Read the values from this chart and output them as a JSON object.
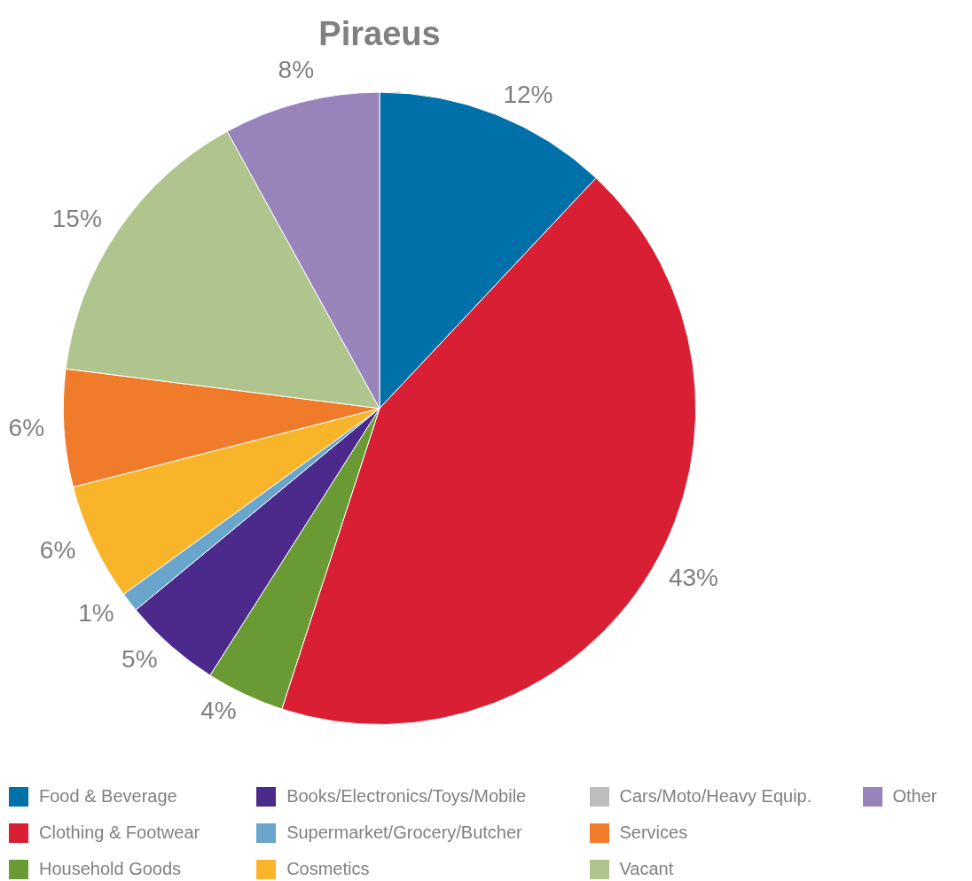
{
  "chart_data": {
    "type": "pie",
    "title": "Piraeus",
    "categories": [
      "Food & Beverage",
      "Clothing & Footwear",
      "Household Goods",
      "Books/Electronics/Toys/Mobile",
      "Supermarket/Grocery/Butcher",
      "Cosmetics",
      "Cars/Moto/Heavy Equip.",
      "Services",
      "Vacant",
      "Other"
    ],
    "values": [
      12,
      43,
      4,
      5,
      1,
      6,
      0,
      6,
      15,
      8
    ],
    "value_labels": [
      "12%",
      "43%",
      "4%",
      "5%",
      "1%",
      "6%",
      null,
      "6%",
      "15%",
      "8%"
    ],
    "colors": [
      "#0070a8",
      "#d91f33",
      "#6a9a34",
      "#4b2a8c",
      "#6aa5cc",
      "#f9b52a",
      "#bdbdbd",
      "#f07b2b",
      "#b0c48e",
      "#9884bb"
    ],
    "legend": "bottom"
  }
}
